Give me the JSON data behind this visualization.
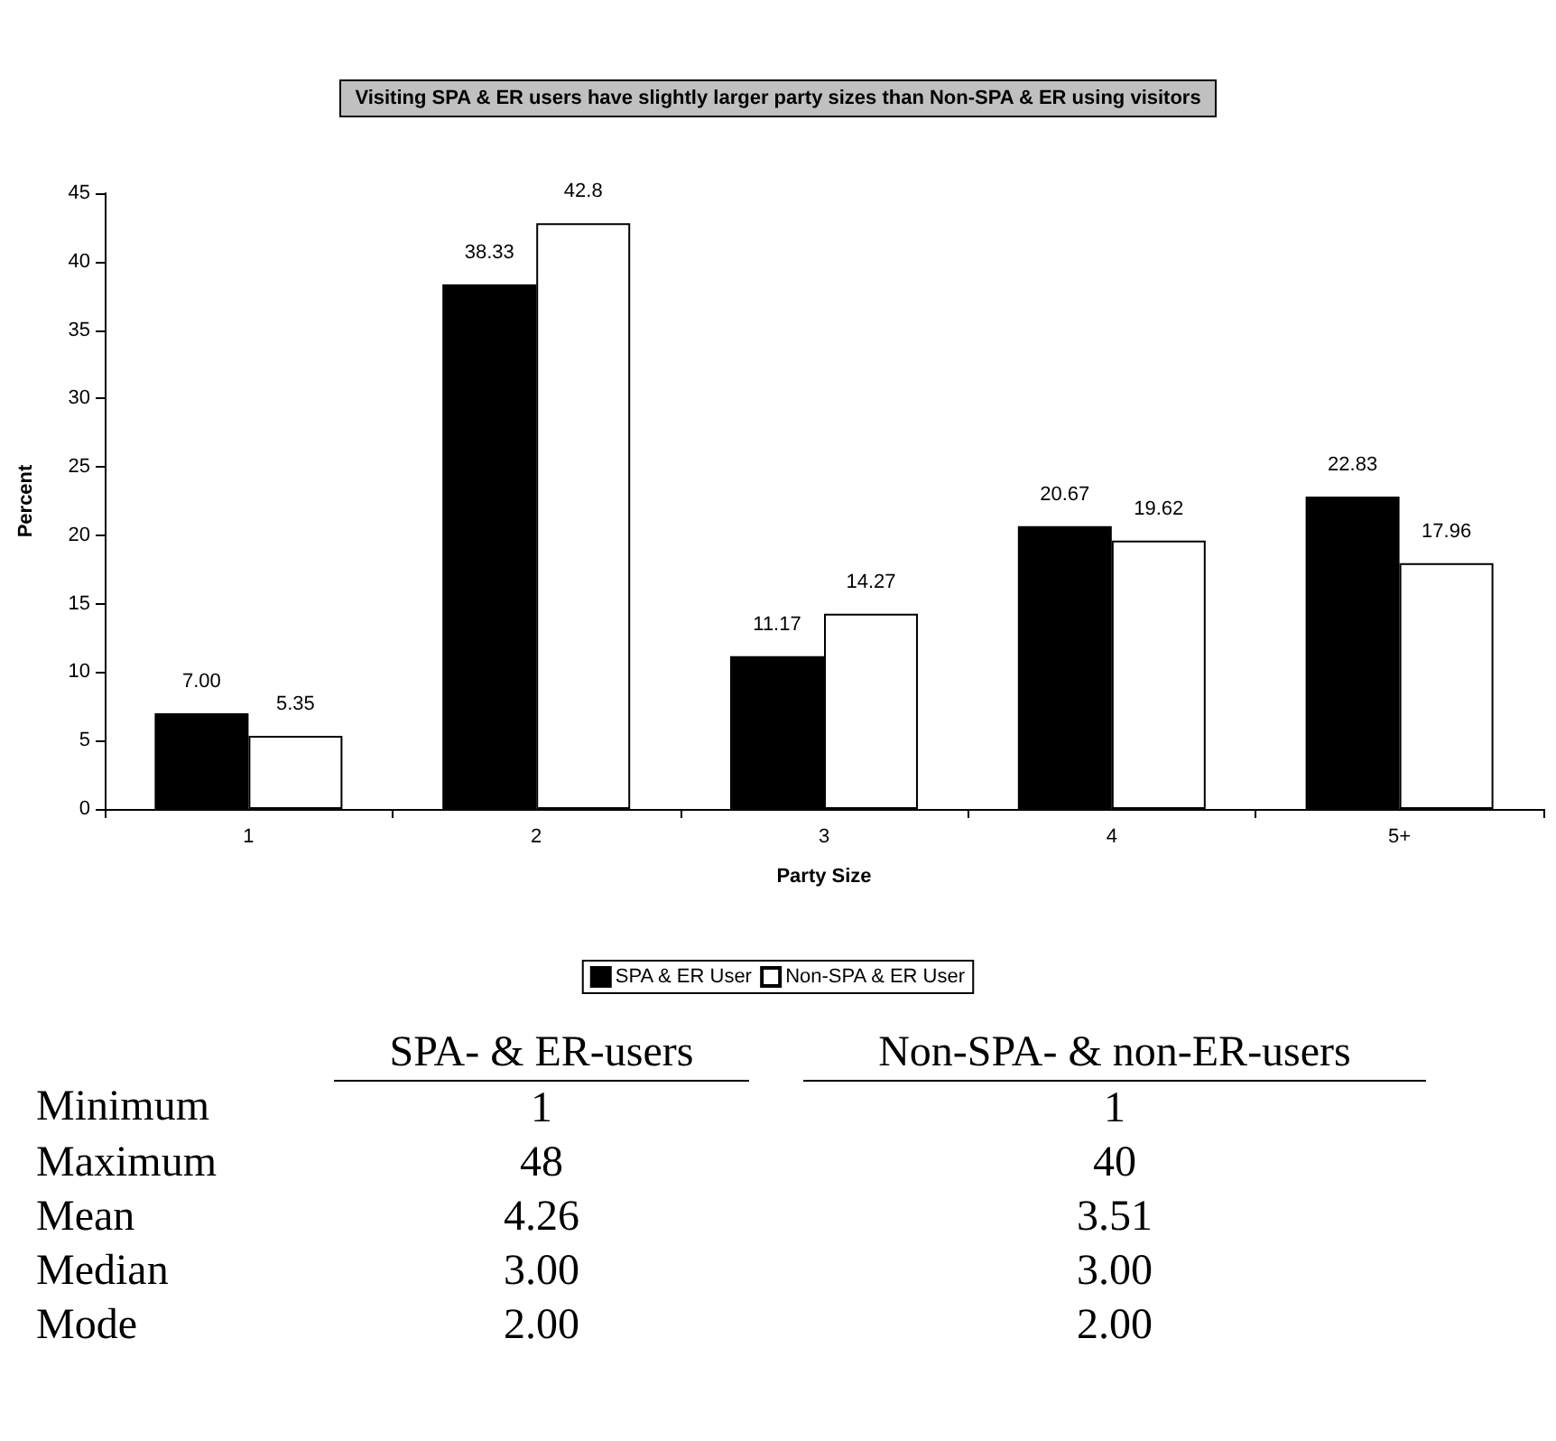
{
  "chart_data": [
    {
      "type": "bar",
      "title": "Visiting SPA & ER users have slightly larger party sizes than Non-SPA & ER using visitors",
      "xlabel": "Party Size",
      "ylabel": "Percent",
      "categories": [
        "1",
        "2",
        "3",
        "4",
        "5+"
      ],
      "series": [
        {
          "name": "SPA & ER User",
          "color": "#000000",
          "values": [
            7.0,
            38.33,
            11.17,
            20.67,
            22.83
          ],
          "value_labels": [
            "7.00",
            "38.33",
            "11.17",
            "20.67",
            "22.83"
          ]
        },
        {
          "name": "Non-SPA & ER User",
          "color": "#ffffff",
          "values": [
            5.35,
            42.8,
            14.27,
            19.62,
            17.96
          ],
          "value_labels": [
            "5.35",
            "42.8",
            "14.27",
            "19.62",
            "17.96"
          ]
        }
      ],
      "ylim": [
        0,
        45
      ],
      "yticks": [
        0,
        5,
        10,
        15,
        20,
        25,
        30,
        35,
        40,
        45
      ],
      "grid": false,
      "legend": "bottom"
    },
    {
      "type": "other",
      "categories": [
        "SPA- & ER-users",
        "Non-SPA- & non-ER-users"
      ],
      "y_categories": [
        "Minimum",
        "Maximum",
        "Mean",
        "Median",
        "Mode"
      ],
      "cell_labels": [
        [
          "1",
          "1"
        ],
        [
          "48",
          "40"
        ],
        [
          "4.26",
          "3.51"
        ],
        [
          "3.00",
          "3.00"
        ],
        [
          "2.00",
          "2.00"
        ]
      ]
    }
  ]
}
